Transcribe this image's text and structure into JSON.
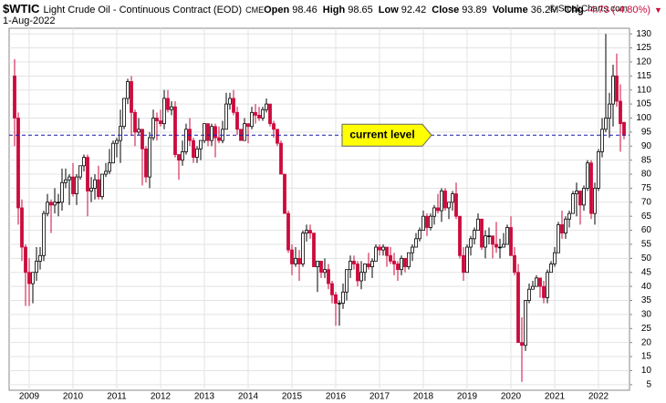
{
  "chart_data": {
    "type": "candlestick",
    "title": "$WTIC",
    "subtitle": "Light Crude Oil - Continuous Contract (EOD)",
    "exchange": "CME",
    "date": "1-Aug-2022",
    "stats": [
      {
        "label": "Open",
        "value": 98.46
      },
      {
        "label": "High",
        "value": 98.65
      },
      {
        "label": "Low",
        "value": 92.42
      },
      {
        "label": "Close",
        "value": 93.89
      },
      {
        "label": "Volume",
        "value": 36200000,
        "value_label": "36.2M"
      },
      {
        "label": "Chg",
        "value": -4.73,
        "value_label": "-4.73 (-4.80%)"
      }
    ],
    "watermark": "© StockCharts.com",
    "reference_line": {
      "label": "current level",
      "value": 93.89,
      "color": "#1a1aa6"
    },
    "up_color": "#ffffff",
    "down_color": "#cc0a3c",
    "ylim": [
      3,
      132
    ],
    "yticks": [
      5,
      10,
      15,
      20,
      25,
      30,
      35,
      40,
      45,
      50,
      55,
      60,
      65,
      70,
      75,
      80,
      85,
      90,
      95,
      100,
      105,
      110,
      115,
      120,
      125,
      130
    ],
    "grid": true,
    "categories": [
      null,
      null,
      null,
      null,
      "2009",
      null,
      null,
      null,
      null,
      null,
      null,
      null,
      null,
      null,
      null,
      null,
      "2010",
      null,
      null,
      null,
      null,
      null,
      null,
      null,
      null,
      null,
      null,
      null,
      "2011",
      null,
      null,
      null,
      null,
      null,
      null,
      null,
      null,
      null,
      null,
      null,
      "2012",
      null,
      null,
      null,
      null,
      null,
      null,
      null,
      null,
      null,
      null,
      null,
      "2013",
      null,
      null,
      null,
      null,
      null,
      null,
      null,
      null,
      null,
      null,
      null,
      "2014",
      null,
      null,
      null,
      null,
      null,
      null,
      null,
      null,
      null,
      null,
      null,
      "2015",
      null,
      null,
      null,
      null,
      null,
      null,
      null,
      null,
      null,
      null,
      null,
      "2016",
      null,
      null,
      null,
      null,
      null,
      null,
      null,
      null,
      null,
      null,
      null,
      "2017",
      null,
      null,
      null,
      null,
      null,
      null,
      null,
      null,
      null,
      null,
      null,
      "2018",
      null,
      null,
      null,
      null,
      null,
      null,
      null,
      null,
      null,
      null,
      null,
      "2019",
      null,
      null,
      null,
      null,
      null,
      null,
      null,
      null,
      null,
      null,
      null,
      "2020",
      null,
      null,
      null,
      null,
      null,
      null,
      null,
      null,
      null,
      null,
      null,
      "2021",
      null,
      null,
      null,
      null,
      null,
      null,
      null,
      null,
      null,
      null,
      null,
      "2022",
      null,
      null,
      null,
      null,
      null,
      null,
      null
    ],
    "ohlc": [
      [
        115,
        121,
        90,
        100
      ],
      [
        100,
        102,
        62,
        68
      ],
      [
        68,
        71,
        49,
        54
      ],
      [
        54,
        55,
        33,
        45
      ],
      [
        45,
        50,
        33,
        41
      ],
      [
        41,
        44,
        34,
        45
      ],
      [
        45,
        54,
        42,
        49
      ],
      [
        49,
        54,
        46,
        51
      ],
      [
        51,
        67,
        49,
        66
      ],
      [
        66,
        73,
        65,
        70
      ],
      [
        70,
        71,
        59,
        69
      ],
      [
        69,
        75,
        66,
        70
      ],
      [
        70,
        73,
        65,
        70
      ],
      [
        70,
        82,
        67,
        77
      ],
      [
        77,
        82,
        75,
        78
      ],
      [
        78,
        80,
        69,
        79
      ],
      [
        79,
        84,
        72,
        73
      ],
      [
        73,
        80,
        69,
        79
      ],
      [
        79,
        83,
        78,
        83
      ],
      [
        83,
        87,
        81,
        86
      ],
      [
        86,
        87,
        65,
        74
      ],
      [
        74,
        79,
        70,
        75
      ],
      [
        75,
        80,
        71,
        78
      ],
      [
        78,
        83,
        71,
        72
      ],
      [
        72,
        80,
        71,
        80
      ],
      [
        80,
        84,
        79,
        81
      ],
      [
        81,
        89,
        80,
        84
      ],
      [
        84,
        92,
        84,
        91
      ],
      [
        91,
        93,
        86,
        92
      ],
      [
        92,
        103,
        84,
        97
      ],
      [
        97,
        107,
        96,
        107
      ],
      [
        107,
        114,
        105,
        113
      ],
      [
        113,
        115,
        94,
        102
      ],
      [
        102,
        103,
        90,
        95
      ],
      [
        95,
        100,
        94,
        96
      ],
      [
        96,
        96,
        76,
        89
      ],
      [
        89,
        90,
        77,
        79
      ],
      [
        79,
        95,
        75,
        93
      ],
      [
        93,
        103,
        92,
        100
      ],
      [
        100,
        102,
        92,
        99
      ],
      [
        99,
        103,
        97,
        98
      ],
      [
        98,
        110,
        96,
        107
      ],
      [
        107,
        110,
        102,
        103
      ],
      [
        103,
        106,
        101,
        104
      ],
      [
        104,
        106,
        86,
        87
      ],
      [
        87,
        87,
        78,
        85
      ],
      [
        85,
        92,
        83,
        88
      ],
      [
        88,
        98,
        87,
        96
      ],
      [
        96,
        100,
        90,
        92
      ],
      [
        92,
        93,
        84,
        86
      ],
      [
        86,
        90,
        84,
        89
      ],
      [
        89,
        92,
        85,
        92
      ],
      [
        92,
        98,
        91,
        98
      ],
      [
        98,
        98,
        90,
        92
      ],
      [
        92,
        98,
        90,
        97
      ],
      [
        97,
        98,
        86,
        93
      ],
      [
        93,
        97,
        91,
        92
      ],
      [
        92,
        99,
        91,
        96
      ],
      [
        96,
        109,
        96,
        105
      ],
      [
        105,
        109,
        103,
        107
      ],
      [
        107,
        110,
        101,
        102
      ],
      [
        102,
        104,
        94,
        96
      ],
      [
        96,
        96,
        92,
        92
      ],
      [
        92,
        100,
        92,
        98
      ],
      [
        98,
        98,
        91,
        97
      ],
      [
        97,
        104,
        96,
        102
      ],
      [
        102,
        105,
        98,
        101
      ],
      [
        101,
        104,
        99,
        100
      ],
      [
        100,
        104,
        99,
        103
      ],
      [
        103,
        107,
        102,
        105
      ],
      [
        105,
        105,
        97,
        98
      ],
      [
        98,
        99,
        93,
        96
      ],
      [
        96,
        96,
        90,
        91
      ],
      [
        91,
        92,
        80,
        80
      ],
      [
        80,
        80,
        66,
        66
      ],
      [
        66,
        67,
        52,
        53
      ],
      [
        53,
        55,
        44,
        48
      ],
      [
        48,
        54,
        47,
        50
      ],
      [
        50,
        53,
        42,
        48
      ],
      [
        48,
        60,
        47,
        59
      ],
      [
        59,
        62,
        56,
        60
      ],
      [
        60,
        62,
        57,
        59
      ],
      [
        59,
        59,
        47,
        47
      ],
      [
        47,
        49,
        38,
        49
      ],
      [
        49,
        49,
        43,
        45
      ],
      [
        45,
        50,
        43,
        46
      ],
      [
        46,
        48,
        39,
        41
      ],
      [
        41,
        42,
        34,
        37
      ],
      [
        37,
        38,
        26,
        34
      ],
      [
        34,
        35,
        26,
        34
      ],
      [
        34,
        41,
        32,
        38
      ],
      [
        38,
        46,
        35,
        46
      ],
      [
        46,
        51,
        43,
        49
      ],
      [
        49,
        51,
        46,
        48
      ],
      [
        48,
        49,
        40,
        42
      ],
      [
        42,
        49,
        39,
        45
      ],
      [
        45,
        48,
        42,
        48
      ],
      [
        48,
        52,
        46,
        47
      ],
      [
        47,
        50,
        43,
        49
      ],
      [
        49,
        55,
        49,
        54
      ],
      [
        54,
        55,
        51,
        53
      ],
      [
        53,
        55,
        51,
        54
      ],
      [
        54,
        54,
        47,
        51
      ],
      [
        51,
        54,
        48,
        49
      ],
      [
        49,
        52,
        44,
        48
      ],
      [
        48,
        49,
        42,
        46
      ],
      [
        46,
        51,
        44,
        50
      ],
      [
        50,
        50,
        45,
        47
      ],
      [
        47,
        52,
        46,
        52
      ],
      [
        52,
        55,
        49,
        54
      ],
      [
        54,
        59,
        54,
        57
      ],
      [
        57,
        61,
        56,
        60
      ],
      [
        60,
        67,
        60,
        65
      ],
      [
        65,
        66,
        58,
        61
      ],
      [
        61,
        66,
        60,
        65
      ],
      [
        65,
        69,
        62,
        68
      ],
      [
        68,
        73,
        66,
        67
      ],
      [
        67,
        75,
        63,
        74
      ],
      [
        74,
        75,
        67,
        68
      ],
      [
        68,
        70,
        64,
        70
      ],
      [
        70,
        74,
        67,
        73
      ],
      [
        73,
        77,
        64,
        65
      ],
      [
        65,
        65,
        50,
        51
      ],
      [
        51,
        54,
        42,
        45
      ],
      [
        45,
        55,
        45,
        54
      ],
      [
        54,
        58,
        51,
        57
      ],
      [
        57,
        61,
        55,
        60
      ],
      [
        60,
        66,
        60,
        64
      ],
      [
        64,
        64,
        53,
        54
      ],
      [
        54,
        60,
        50,
        58
      ],
      [
        58,
        61,
        55,
        58
      ],
      [
        58,
        58,
        50,
        55
      ],
      [
        55,
        63,
        52,
        54
      ],
      [
        54,
        57,
        50,
        54
      ],
      [
        54,
        59,
        54,
        55
      ],
      [
        55,
        62,
        55,
        61
      ],
      [
        61,
        65,
        51,
        51
      ],
      [
        51,
        54,
        44,
        45
      ],
      [
        45,
        48,
        20,
        20
      ],
      [
        20,
        29,
        6,
        19
      ],
      [
        19,
        35,
        17,
        35
      ],
      [
        35,
        41,
        34,
        39
      ],
      [
        39,
        42,
        39,
        40
      ],
      [
        40,
        44,
        40,
        43
      ],
      [
        43,
        43,
        36,
        40
      ],
      [
        40,
        42,
        34,
        36
      ],
      [
        36,
        46,
        34,
        45
      ],
      [
        45,
        49,
        45,
        48
      ],
      [
        48,
        54,
        47,
        52
      ],
      [
        52,
        63,
        52,
        62
      ],
      [
        62,
        67,
        57,
        59
      ],
      [
        59,
        65,
        57,
        64
      ],
      [
        64,
        67,
        61,
        66
      ],
      [
        66,
        74,
        66,
        73
      ],
      [
        73,
        77,
        65,
        74
      ],
      [
        74,
        74,
        62,
        69
      ],
      [
        69,
        76,
        67,
        75
      ],
      [
        75,
        85,
        74,
        84
      ],
      [
        84,
        85,
        64,
        66
      ],
      [
        66,
        77,
        62,
        75
      ],
      [
        75,
        89,
        74,
        88
      ],
      [
        88,
        100,
        86,
        96
      ],
      [
        96,
        130,
        95,
        100
      ],
      [
        100,
        109,
        93,
        105
      ],
      [
        105,
        119,
        97,
        115
      ],
      [
        115,
        123,
        104,
        106
      ],
      [
        106,
        112,
        88,
        98
      ],
      [
        98.46,
        98.65,
        92.42,
        93.89
      ]
    ]
  }
}
